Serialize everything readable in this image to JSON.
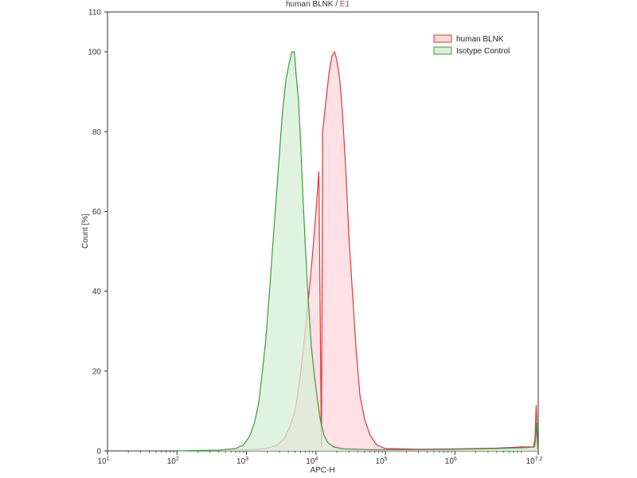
{
  "chart_data": {
    "type": "area",
    "title_parts": [
      "human BLNK",
      " / ",
      "E1"
    ],
    "xlabel": "APC-H",
    "ylabel": "Count [%]",
    "xscale": "log",
    "xlim": [
      10,
      15848931.92
    ],
    "ylim": [
      0,
      110
    ],
    "x_tick_labels": [
      {
        "base": "10",
        "exp": "1"
      },
      {
        "base": "10",
        "exp": "2"
      },
      {
        "base": "10",
        "exp": "3"
      },
      {
        "base": "10",
        "exp": "4"
      },
      {
        "base": "10",
        "exp": "5"
      },
      {
        "base": "10",
        "exp": "6"
      },
      {
        "base": "10",
        "exp": "7.2"
      }
    ],
    "x_tick_values": [
      10,
      100,
      1000,
      10000,
      100000,
      1000000,
      15848931.92
    ],
    "y_ticks": [
      "0",
      "20",
      "40",
      "60",
      "80",
      "100",
      "110"
    ],
    "y_tick_values": [
      0,
      20,
      40,
      60,
      80,
      100,
      110
    ],
    "legend_position": "top-right",
    "series": [
      {
        "name": "human BLNK",
        "stroke": "#d93a3a",
        "fill": "#ffd6dc",
        "points": [
          [
            500,
            0
          ],
          [
            1500,
            0.4
          ],
          [
            2200,
            0.9
          ],
          [
            2800,
            1.5
          ],
          [
            3200,
            2.5
          ],
          [
            3600,
            3.5
          ],
          [
            4200,
            6
          ],
          [
            5000,
            10
          ],
          [
            6000,
            19
          ],
          [
            7000,
            30
          ],
          [
            8000,
            40
          ],
          [
            9000,
            50
          ],
          [
            10000,
            60
          ],
          [
            11000,
            70
          ],
          [
            12500,
            80
          ],
          [
            14000,
            88
          ],
          [
            15500,
            95
          ],
          [
            17000,
            99
          ],
          [
            18500,
            100
          ],
          [
            20000,
            98
          ],
          [
            22000,
            93
          ],
          [
            24000,
            85
          ],
          [
            27000,
            70
          ],
          [
            30000,
            53
          ],
          [
            34000,
            38
          ],
          [
            38000,
            25
          ],
          [
            43000,
            14
          ],
          [
            50000,
            8
          ],
          [
            60000,
            4
          ],
          [
            75000,
            1.5
          ],
          [
            100000,
            0.6
          ],
          [
            300000,
            0.4
          ],
          [
            1000000,
            0.5
          ],
          [
            4000000,
            0.7
          ],
          [
            9000000,
            1
          ],
          [
            12000,
            1
          ],
          [
            13500000,
            1
          ],
          [
            14200000,
            3
          ],
          [
            14800000,
            11.5
          ],
          [
            15200000,
            7
          ],
          [
            15600000,
            1
          ],
          [
            15848931,
            0
          ]
        ]
      },
      {
        "name": "Isotype Control",
        "stroke": "#3b9b3b",
        "fill": "#d6efd6",
        "points": [
          [
            100,
            0
          ],
          [
            400,
            0.2
          ],
          [
            700,
            0.6
          ],
          [
            900,
            1.5
          ],
          [
            1100,
            3.5
          ],
          [
            1300,
            7
          ],
          [
            1500,
            12
          ],
          [
            1700,
            20
          ],
          [
            1900,
            28
          ],
          [
            2150,
            40
          ],
          [
            2400,
            52
          ],
          [
            2700,
            64
          ],
          [
            3000,
            75
          ],
          [
            3300,
            85
          ],
          [
            3700,
            93
          ],
          [
            4100,
            97
          ],
          [
            4500,
            100
          ],
          [
            4900,
            100
          ],
          [
            5200,
            94
          ],
          [
            5600,
            88
          ],
          [
            6000,
            78
          ],
          [
            6500,
            64
          ],
          [
            7100,
            50
          ],
          [
            7800,
            37
          ],
          [
            8600,
            26
          ],
          [
            9500,
            19
          ],
          [
            10500,
            13
          ],
          [
            11500,
            8
          ],
          [
            13000,
            4
          ],
          [
            15000,
            2
          ],
          [
            18000,
            1
          ],
          [
            25000,
            0.5
          ],
          [
            60000,
            0.3
          ],
          [
            300000,
            0.3
          ],
          [
            1000000,
            0.4
          ],
          [
            4000000,
            0.6
          ],
          [
            10000000,
            0.8
          ],
          [
            14000000,
            1
          ],
          [
            14500000,
            3
          ],
          [
            14900000,
            7
          ],
          [
            15300000,
            3
          ],
          [
            15600000,
            0.5
          ],
          [
            15848931,
            0
          ]
        ]
      }
    ]
  }
}
